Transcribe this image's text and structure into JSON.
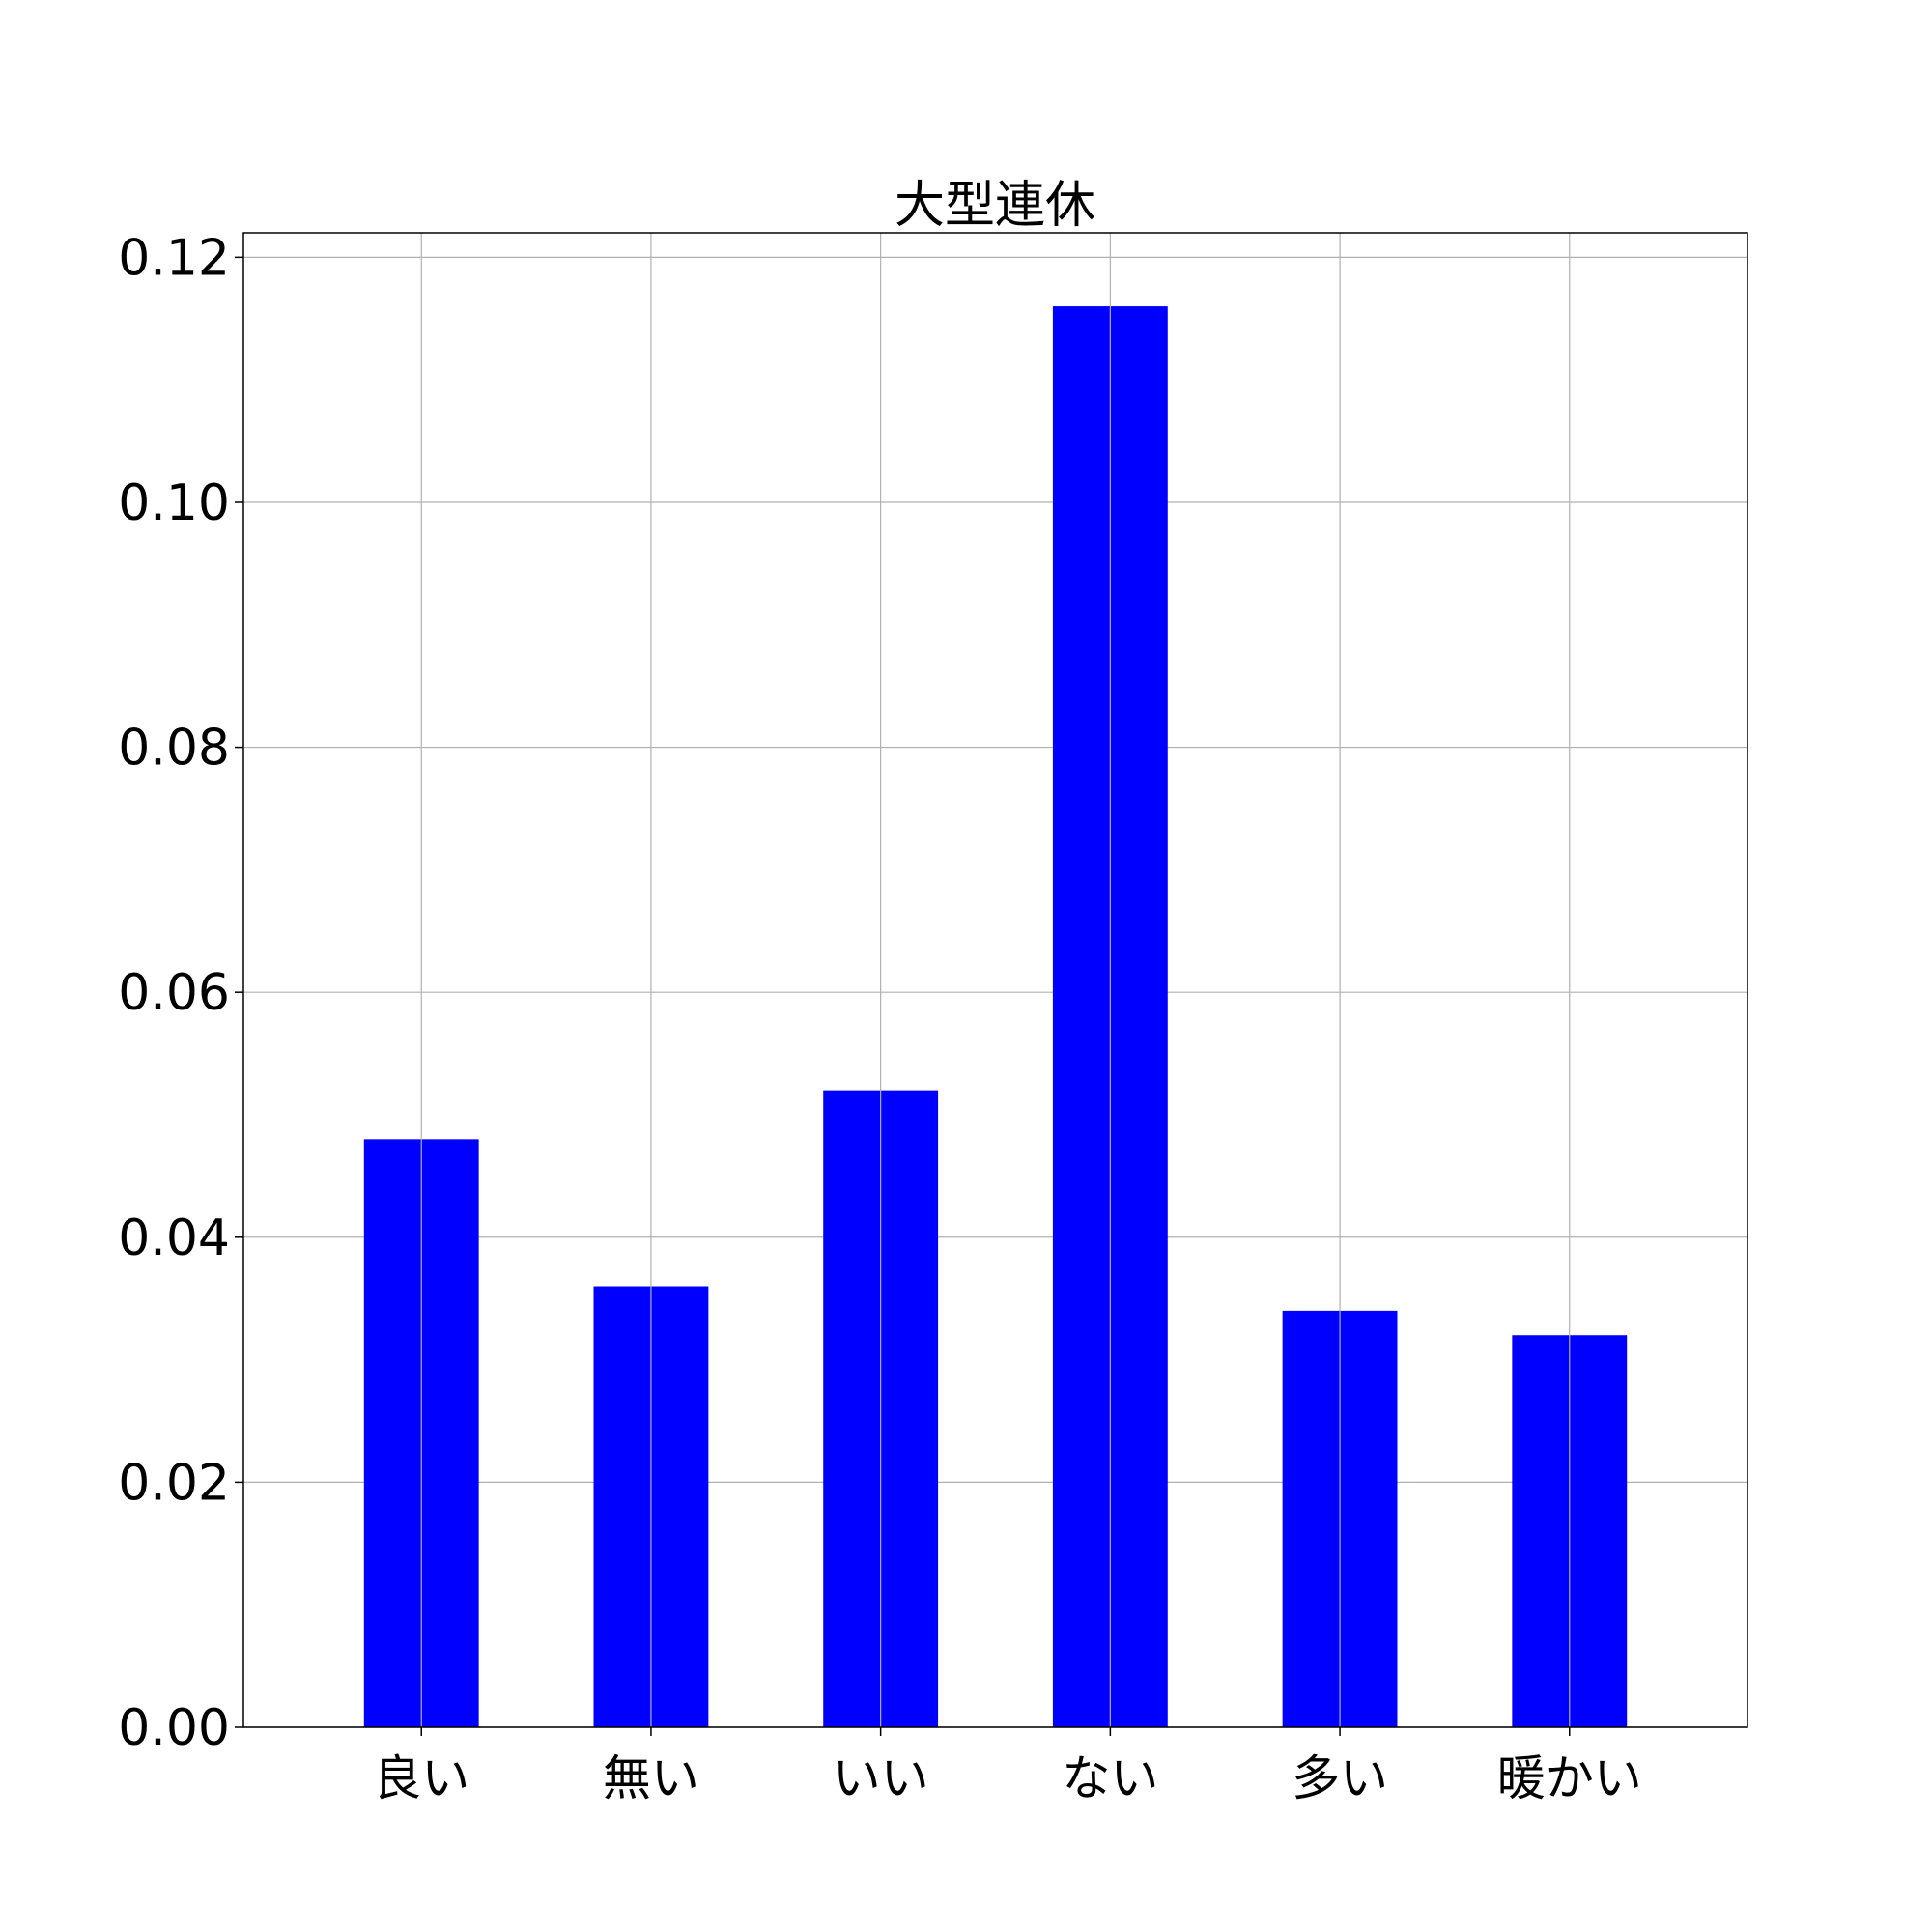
{
  "chart_data": {
    "type": "bar",
    "title": "大型連休",
    "xlabel": "",
    "ylabel": "",
    "categories": [
      "良い",
      "無い",
      "いい",
      "ない",
      "多い",
      "暖かい"
    ],
    "values": [
      0.048,
      0.036,
      0.052,
      0.116,
      0.034,
      0.032
    ],
    "ylim": [
      0,
      0.122
    ],
    "yticks": [
      "0.00",
      "0.02",
      "0.04",
      "0.06",
      "0.08",
      "0.10",
      "0.12"
    ],
    "grid": true,
    "legend": "none",
    "colors": {
      "bar": "#0000ff",
      "grid": "#b0b0b0",
      "axis": "#000000"
    }
  }
}
